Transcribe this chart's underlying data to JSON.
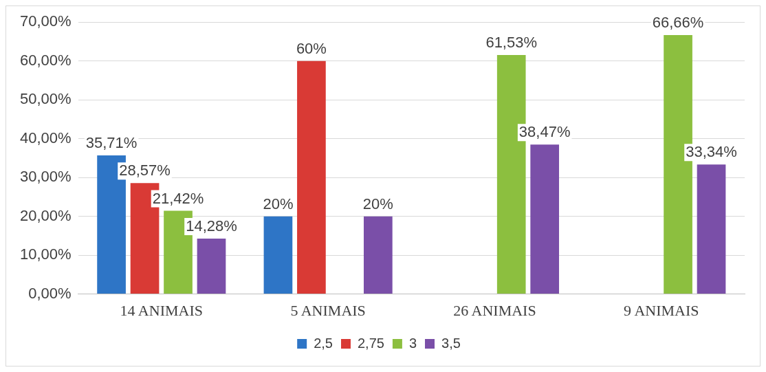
{
  "chart_data": {
    "type": "bar",
    "categories": [
      "14 ANIMAIS",
      "5 ANIMAIS",
      "26 ANIMAIS",
      "9 ANIMAIS"
    ],
    "series": [
      {
        "name": "2,5",
        "color": "#2e75c6",
        "values": [
          35.71,
          20,
          null,
          null
        ],
        "value_labels": [
          "35,71%",
          "20%",
          null,
          null
        ]
      },
      {
        "name": "2,75",
        "color": "#d93a35",
        "values": [
          28.57,
          60,
          null,
          null
        ],
        "value_labels": [
          "28,57%",
          "60%",
          null,
          null
        ]
      },
      {
        "name": "3",
        "color": "#8cbf3f",
        "values": [
          21.42,
          null,
          61.53,
          66.66
        ],
        "value_labels": [
          "21,42%",
          null,
          "61,53%",
          "66,66%"
        ]
      },
      {
        "name": "3,5",
        "color": "#7a4fa8",
        "values": [
          14.28,
          20,
          38.47,
          33.34
        ],
        "value_labels": [
          "14,28%",
          "20%",
          "38,47%",
          "33,34%"
        ]
      }
    ],
    "ylim": [
      0,
      70
    ],
    "yticks": [
      {
        "value": 0,
        "label": "0,00%"
      },
      {
        "value": 10,
        "label": "10,00%"
      },
      {
        "value": 20,
        "label": "20,00%"
      },
      {
        "value": 30,
        "label": "30,00%"
      },
      {
        "value": 40,
        "label": "40,00%"
      },
      {
        "value": 50,
        "label": "50,00%"
      },
      {
        "value": 60,
        "label": "60,00%"
      },
      {
        "value": 70,
        "label": "70,00%"
      }
    ],
    "grid": "y",
    "legend": "bottom"
  }
}
